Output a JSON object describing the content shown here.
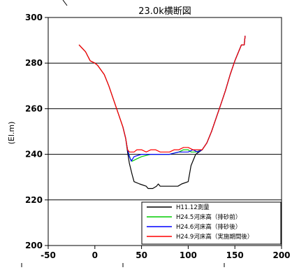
{
  "chart_data": {
    "type": "line",
    "title": "23.0k横断図",
    "xlabel": "",
    "ylabel": "(El.m)",
    "xlim": [
      -50,
      200
    ],
    "ylim": [
      200,
      300
    ],
    "xticks": [
      -50,
      0,
      50,
      100,
      150,
      200
    ],
    "yticks": [
      200,
      220,
      240,
      260,
      280,
      300
    ],
    "grid": "horizontal",
    "legend": "bottom-right",
    "series": [
      {
        "name": "H11.12測量",
        "color": "#000000",
        "points": [
          [
            -17,
            288
          ],
          [
            -10,
            285
          ],
          [
            -5,
            281
          ],
          [
            0,
            280
          ],
          [
            3,
            279
          ],
          [
            10,
            275
          ],
          [
            15,
            270
          ],
          [
            20,
            264
          ],
          [
            25,
            258
          ],
          [
            30,
            252
          ],
          [
            33,
            247
          ],
          [
            35,
            241
          ],
          [
            37,
            236
          ],
          [
            40,
            231
          ],
          [
            42,
            228
          ],
          [
            48,
            227
          ],
          [
            55,
            226
          ],
          [
            57,
            225
          ],
          [
            62,
            225
          ],
          [
            66,
            226
          ],
          [
            68,
            227
          ],
          [
            70,
            226
          ],
          [
            80,
            226
          ],
          [
            89,
            226
          ],
          [
            93,
            227
          ],
          [
            100,
            228
          ],
          [
            103,
            235
          ],
          [
            108,
            240
          ],
          [
            115,
            242
          ],
          [
            120,
            245
          ],
          [
            125,
            250
          ],
          [
            130,
            256
          ],
          [
            135,
            262
          ],
          [
            140,
            268
          ],
          [
            145,
            275
          ],
          [
            150,
            281
          ],
          [
            155,
            286
          ],
          [
            157,
            288
          ],
          [
            160,
            288
          ],
          [
            161,
            292
          ]
        ]
      },
      {
        "name": "H24.5河床高（排砂前）",
        "color": "#00cc00",
        "points": [
          [
            30,
            252
          ],
          [
            33,
            247
          ],
          [
            35,
            242
          ],
          [
            38,
            238
          ],
          [
            40,
            237
          ],
          [
            45,
            238
          ],
          [
            50,
            239
          ],
          [
            60,
            240
          ],
          [
            70,
            240
          ],
          [
            80,
            240
          ],
          [
            90,
            241
          ],
          [
            95,
            242
          ],
          [
            100,
            242
          ],
          [
            103,
            241
          ],
          [
            108,
            241
          ],
          [
            115,
            242
          ],
          [
            120,
            245
          ],
          [
            125,
            250
          ],
          [
            130,
            256
          ],
          [
            135,
            262
          ],
          [
            140,
            268
          ],
          [
            145,
            275
          ],
          [
            150,
            281
          ],
          [
            155,
            286
          ],
          [
            157,
            288
          ],
          [
            160,
            288
          ],
          [
            161,
            292
          ]
        ]
      },
      {
        "name": "H24.6河床高（排砂後）",
        "color": "#0000ff",
        "points": [
          [
            30,
            252
          ],
          [
            33,
            247
          ],
          [
            35,
            242
          ],
          [
            37,
            239
          ],
          [
            39,
            237
          ],
          [
            42,
            239
          ],
          [
            50,
            240
          ],
          [
            60,
            240
          ],
          [
            70,
            240
          ],
          [
            80,
            240
          ],
          [
            90,
            241
          ],
          [
            100,
            241
          ],
          [
            105,
            242
          ],
          [
            110,
            241
          ],
          [
            115,
            242
          ],
          [
            120,
            245
          ],
          [
            125,
            250
          ],
          [
            130,
            256
          ],
          [
            135,
            262
          ],
          [
            140,
            268
          ],
          [
            145,
            275
          ],
          [
            150,
            281
          ],
          [
            155,
            286
          ],
          [
            157,
            288
          ],
          [
            160,
            288
          ],
          [
            161,
            292
          ]
        ]
      },
      {
        "name": "H24.9河床高（実施期間後）",
        "color": "#ff0000",
        "points": [
          [
            -17,
            288
          ],
          [
            -10,
            285
          ],
          [
            -5,
            281
          ],
          [
            0,
            280
          ],
          [
            3,
            279
          ],
          [
            10,
            275
          ],
          [
            15,
            270
          ],
          [
            20,
            264
          ],
          [
            25,
            258
          ],
          [
            30,
            252
          ],
          [
            33,
            247
          ],
          [
            35,
            242
          ],
          [
            37,
            241
          ],
          [
            42,
            241
          ],
          [
            45,
            242
          ],
          [
            50,
            242
          ],
          [
            55,
            241
          ],
          [
            60,
            242
          ],
          [
            65,
            242
          ],
          [
            70,
            241
          ],
          [
            75,
            241
          ],
          [
            80,
            241
          ],
          [
            85,
            242
          ],
          [
            90,
            242
          ],
          [
            95,
            243
          ],
          [
            100,
            243
          ],
          [
            105,
            242
          ],
          [
            110,
            242
          ],
          [
            115,
            242
          ],
          [
            120,
            245
          ],
          [
            125,
            250
          ],
          [
            130,
            256
          ],
          [
            135,
            262
          ],
          [
            140,
            268
          ],
          [
            145,
            275
          ],
          [
            150,
            281
          ],
          [
            155,
            286
          ],
          [
            157,
            288
          ],
          [
            160,
            288
          ],
          [
            161,
            292
          ]
        ]
      }
    ]
  }
}
